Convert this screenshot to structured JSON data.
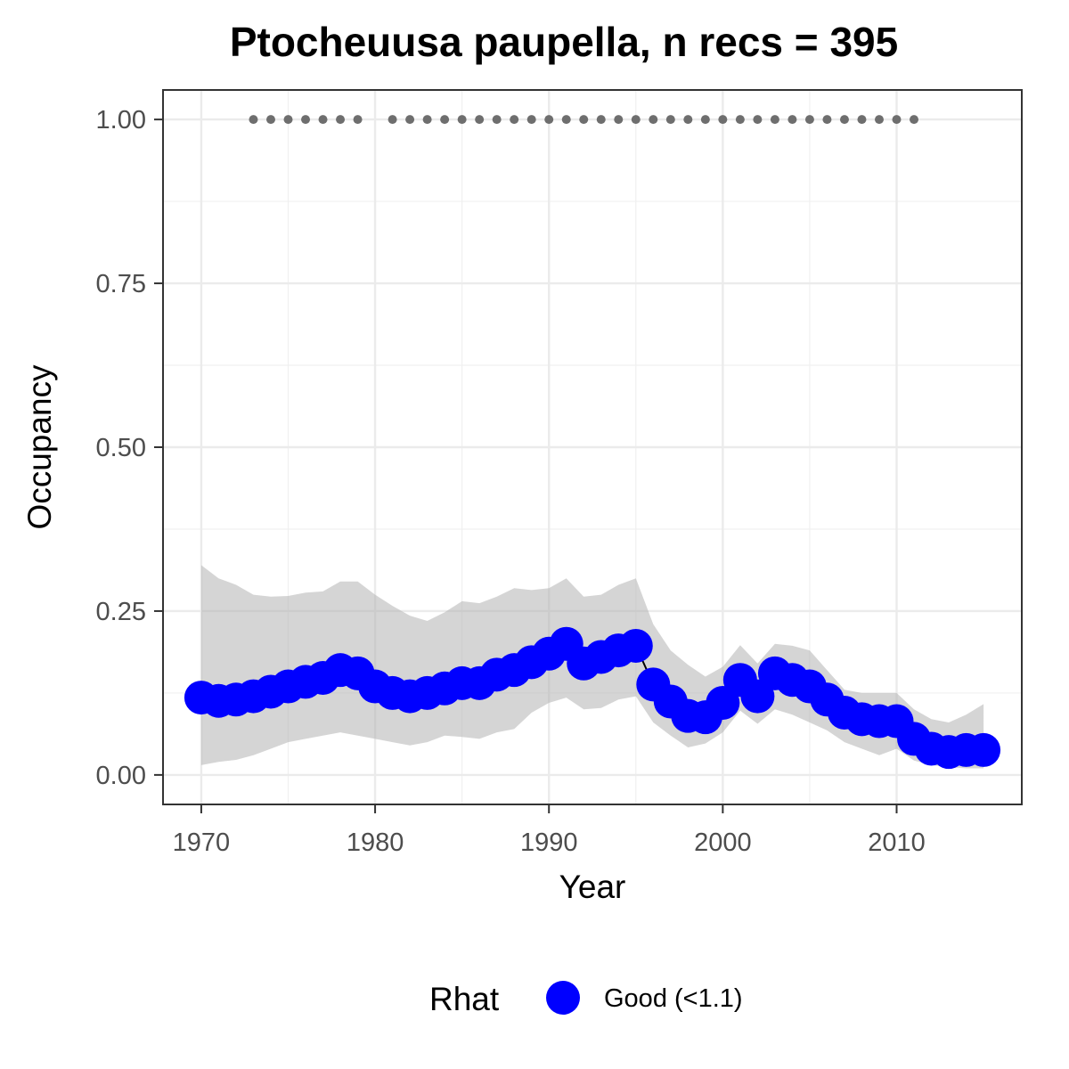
{
  "chart_data": {
    "type": "line",
    "title": "Ptocheuusa paupella, n recs = 395",
    "xlabel": "Year",
    "ylabel": "Occupancy",
    "xlim": [
      1967.8,
      2017.2
    ],
    "ylim": [
      -0.045,
      1.045
    ],
    "x_ticks": [
      1970,
      1980,
      1990,
      2000,
      2010
    ],
    "x_tick_labels": [
      "1970",
      "1980",
      "1990",
      "2000",
      "2010"
    ],
    "y_ticks": [
      0.0,
      0.25,
      0.5,
      0.75,
      1.0
    ],
    "y_tick_labels": [
      "0.00",
      "0.25",
      "0.50",
      "0.75",
      "1.00"
    ],
    "grid": true,
    "legend": {
      "title": "Rhat",
      "position": "bottom",
      "entries": [
        {
          "label": "Good (<1.1)",
          "color": "#0000ff"
        }
      ]
    },
    "series": [
      {
        "name": "Good (<1.1)",
        "color": "#0000ff",
        "x": [
          1970,
          1971,
          1972,
          1973,
          1974,
          1975,
          1976,
          1977,
          1978,
          1979,
          1980,
          1981,
          1982,
          1983,
          1984,
          1985,
          1986,
          1987,
          1988,
          1989,
          1990,
          1991,
          1992,
          1993,
          1994,
          1995,
          1996,
          1997,
          1998,
          1999,
          2000,
          2001,
          2002,
          2003,
          2004,
          2005,
          2006,
          2007,
          2008,
          2009,
          2010,
          2011,
          2012,
          2013,
          2014,
          2015
        ],
        "y": [
          0.118,
          0.113,
          0.115,
          0.12,
          0.127,
          0.135,
          0.142,
          0.148,
          0.16,
          0.155,
          0.135,
          0.125,
          0.12,
          0.125,
          0.132,
          0.14,
          0.14,
          0.153,
          0.16,
          0.172,
          0.185,
          0.2,
          0.17,
          0.18,
          0.19,
          0.197,
          0.138,
          0.112,
          0.09,
          0.088,
          0.11,
          0.145,
          0.12,
          0.155,
          0.145,
          0.135,
          0.115,
          0.095,
          0.085,
          0.082,
          0.082,
          0.055,
          0.04,
          0.035,
          0.038,
          0.038
        ],
        "lower": [
          0.015,
          0.02,
          0.023,
          0.03,
          0.04,
          0.05,
          0.055,
          0.06,
          0.065,
          0.06,
          0.055,
          0.05,
          0.045,
          0.05,
          0.06,
          0.058,
          0.055,
          0.065,
          0.07,
          0.095,
          0.11,
          0.118,
          0.1,
          0.102,
          0.115,
          0.12,
          0.08,
          0.06,
          0.042,
          0.048,
          0.065,
          0.098,
          0.078,
          0.1,
          0.092,
          0.08,
          0.068,
          0.05,
          0.04,
          0.03,
          0.04,
          0.022,
          0.015,
          0.012,
          0.01,
          0.01
        ],
        "upper": [
          0.32,
          0.3,
          0.29,
          0.275,
          0.272,
          0.273,
          0.278,
          0.28,
          0.295,
          0.295,
          0.275,
          0.258,
          0.243,
          0.235,
          0.248,
          0.265,
          0.262,
          0.272,
          0.285,
          0.282,
          0.285,
          0.3,
          0.272,
          0.275,
          0.29,
          0.3,
          0.23,
          0.19,
          0.168,
          0.15,
          0.165,
          0.198,
          0.17,
          0.2,
          0.197,
          0.19,
          0.16,
          0.13,
          0.125,
          0.125,
          0.125,
          0.1,
          0.085,
          0.08,
          0.092,
          0.108
        ]
      },
      {
        "name": "",
        "color": "#6e6e6e",
        "x": [
          1973,
          1974,
          1975,
          1976,
          1977,
          1978,
          1979,
          1981,
          1982,
          1983,
          1984,
          1985,
          1986,
          1987,
          1988,
          1989,
          1990,
          1991,
          1992,
          1993,
          1994,
          1995,
          1996,
          1997,
          1998,
          1999,
          2000,
          2001,
          2002,
          2003,
          2004,
          2005,
          2006,
          2007,
          2008,
          2009,
          2010,
          2011
        ],
        "y": [
          1,
          1,
          1,
          1,
          1,
          1,
          1,
          1,
          1,
          1,
          1,
          1,
          1,
          1,
          1,
          1,
          1,
          1,
          1,
          1,
          1,
          1,
          1,
          1,
          1,
          1,
          1,
          1,
          1,
          1,
          1,
          1,
          1,
          1,
          1,
          1,
          1,
          1
        ]
      }
    ]
  }
}
